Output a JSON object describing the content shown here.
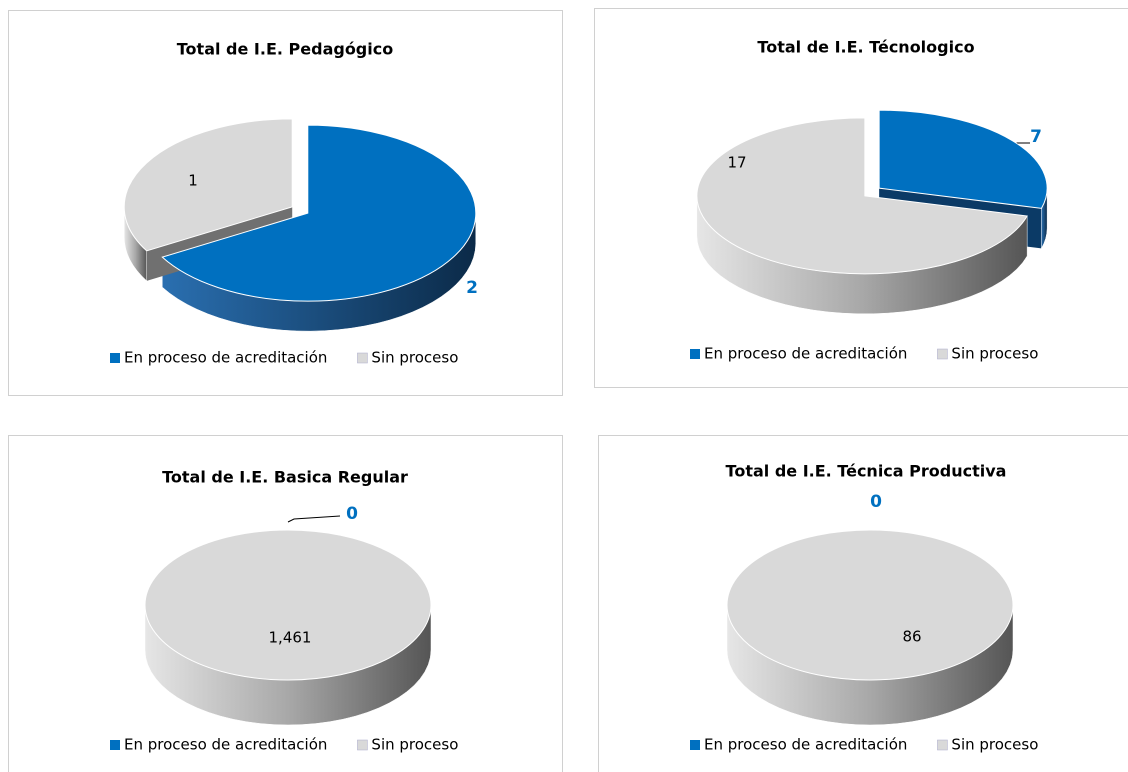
{
  "chart_data": [
    {
      "type": "pie",
      "title": "Total de I.E. Pedagógico",
      "categories": [
        "En proceso de acreditación",
        "Sin proceso"
      ],
      "values": [
        2,
        1
      ],
      "colors": [
        "#0070c0",
        "#d9d9d9"
      ]
    },
    {
      "type": "pie",
      "title": "Total de I.E. Técnologico",
      "categories": [
        "En proceso de acreditación",
        "Sin proceso"
      ],
      "values": [
        7,
        17
      ],
      "colors": [
        "#0070c0",
        "#d9d9d9"
      ]
    },
    {
      "type": "pie",
      "title": "Total de I.E. Basica Regular",
      "categories": [
        "En proceso de acreditación",
        "Sin proceso"
      ],
      "values": [
        0,
        1461
      ],
      "value_labels": [
        "0",
        "1,461"
      ],
      "colors": [
        "#0070c0",
        "#d9d9d9"
      ]
    },
    {
      "type": "pie",
      "title": "Total de I.E. Técnica Productiva",
      "categories": [
        "En proceso de acreditación",
        "Sin proceso"
      ],
      "values": [
        0,
        86
      ],
      "colors": [
        "#0070c0",
        "#d9d9d9"
      ]
    }
  ]
}
